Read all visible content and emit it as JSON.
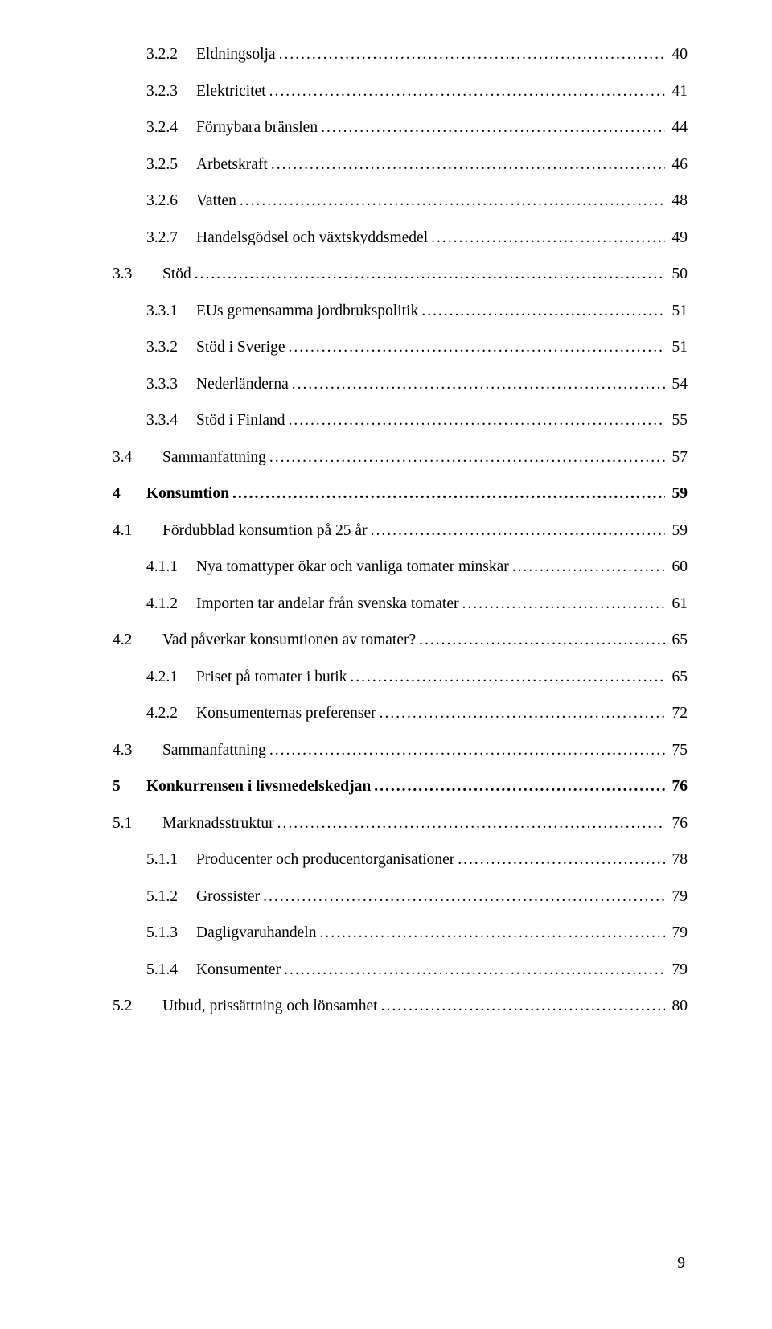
{
  "toc": [
    {
      "level": 2,
      "num": "3.2.2",
      "title": "Eldningsolja",
      "page": "40"
    },
    {
      "level": 2,
      "num": "3.2.3",
      "title": "Elektricitet",
      "page": "41"
    },
    {
      "level": 2,
      "num": "3.2.4",
      "title": "Förnybara bränslen",
      "page": "44"
    },
    {
      "level": 2,
      "num": "3.2.5",
      "title": "Arbetskraft",
      "page": "46"
    },
    {
      "level": 2,
      "num": "3.2.6",
      "title": "Vatten",
      "page": "48"
    },
    {
      "level": 2,
      "num": "3.2.7",
      "title": "Handelsgödsel och växtskyddsmedel",
      "page": "49"
    },
    {
      "level": 1,
      "num": "3.3",
      "title": "Stöd",
      "page": "50"
    },
    {
      "level": 2,
      "num": "3.3.1",
      "title": "EUs gemensamma jordbrukspolitik",
      "page": "51"
    },
    {
      "level": 2,
      "num": "3.3.2",
      "title": "Stöd i Sverige",
      "page": "51"
    },
    {
      "level": 2,
      "num": "3.3.3",
      "title": "Nederländerna",
      "page": "54"
    },
    {
      "level": 2,
      "num": "3.3.4",
      "title": "Stöd i Finland",
      "page": "55"
    },
    {
      "level": 1,
      "num": "3.4",
      "title": "Sammanfattning",
      "page": "57"
    },
    {
      "level": 0,
      "num": "4",
      "title": "Konsumtion",
      "page": "59"
    },
    {
      "level": 1,
      "num": "4.1",
      "title": "Fördubblad konsumtion på 25 år",
      "page": "59"
    },
    {
      "level": 2,
      "num": "4.1.1",
      "title": "Nya tomattyper ökar och vanliga tomater minskar",
      "page": "60"
    },
    {
      "level": 2,
      "num": "4.1.2",
      "title": "Importen tar andelar från svenska tomater",
      "page": "61"
    },
    {
      "level": 1,
      "num": "4.2",
      "title": "Vad påverkar konsumtionen av tomater?",
      "page": "65"
    },
    {
      "level": 2,
      "num": "4.2.1",
      "title": "Priset på tomater i butik",
      "page": "65"
    },
    {
      "level": 2,
      "num": "4.2.2",
      "title": "Konsumenternas preferenser",
      "page": "72"
    },
    {
      "level": 1,
      "num": "4.3",
      "title": "Sammanfattning",
      "page": "75"
    },
    {
      "level": 0,
      "num": "5",
      "title": "Konkurrensen i livsmedelskedjan",
      "page": "76"
    },
    {
      "level": 1,
      "num": "5.1",
      "title": "Marknadsstruktur",
      "page": "76"
    },
    {
      "level": 2,
      "num": "5.1.1",
      "title": "Producenter och producentorganisationer",
      "page": "78"
    },
    {
      "level": 2,
      "num": "5.1.2",
      "title": "Grossister",
      "page": "79"
    },
    {
      "level": 2,
      "num": "5.1.3",
      "title": "Dagligvaruhandeln",
      "page": "79"
    },
    {
      "level": 2,
      "num": "5.1.4",
      "title": "Konsumenter",
      "page": "79"
    },
    {
      "level": 1,
      "num": "5.2",
      "title": "Utbud, prissättning och lönsamhet",
      "page": "80"
    }
  ],
  "pageNumber": "9",
  "style": {
    "fontFamily": "Times New Roman",
    "textColor": "#000000",
    "backgroundColor": "#ffffff",
    "fontSizePt": 15,
    "lineSpacingFactor": 2.3,
    "indentLevels": {
      "0": 0,
      "1": 0,
      "2": 42,
      "3": 84
    },
    "leaderChar": ".",
    "boldLevels": [
      0
    ]
  }
}
